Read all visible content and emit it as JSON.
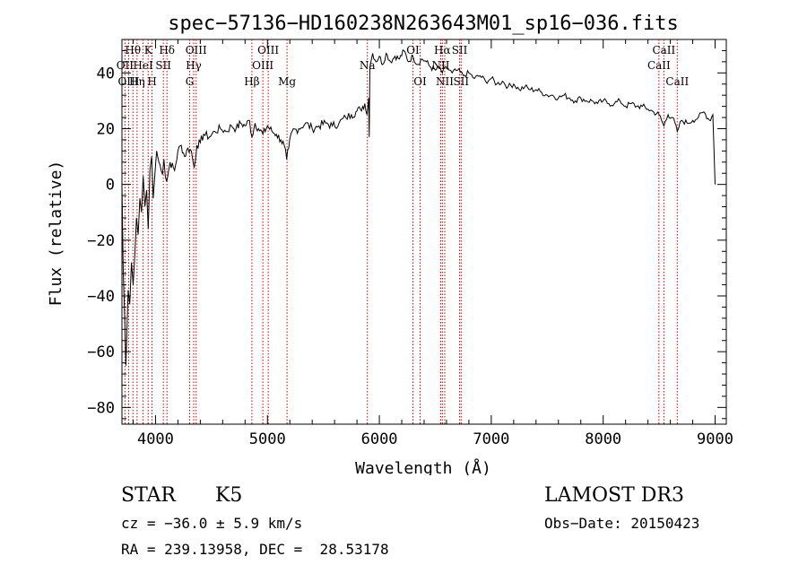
{
  "chart_data": {
    "type": "line",
    "title": "spec−57136−HD160238N263643M01_sp16−036.fits",
    "xlabel": "Wavelength (Å)",
    "ylabel": "Flux (relative)",
    "xlim": [
      3700,
      9100
    ],
    "ylim": [
      -86,
      52
    ],
    "x_ticks": [
      4000,
      5000,
      6000,
      7000,
      8000,
      9000
    ],
    "y_ticks": [
      -80,
      -60,
      -40,
      -20,
      0,
      20,
      40
    ],
    "y_tick_labels": [
      "−80",
      "−60",
      "−40",
      "−20",
      "0",
      "20",
      "40"
    ],
    "grid": false,
    "series": [
      {
        "name": "flux",
        "points": [
          [
            3700,
            0
          ],
          [
            3712,
            -32
          ],
          [
            3725,
            -48
          ],
          [
            3735,
            -65
          ],
          [
            3745,
            -52
          ],
          [
            3755,
            -38
          ],
          [
            3770,
            -43
          ],
          [
            3785,
            -28
          ],
          [
            3800,
            -36
          ],
          [
            3815,
            -25
          ],
          [
            3830,
            -12
          ],
          [
            3845,
            -18
          ],
          [
            3860,
            -5
          ],
          [
            3875,
            -10
          ],
          [
            3890,
            3
          ],
          [
            3905,
            -8
          ],
          [
            3920,
            -2
          ],
          [
            3935,
            -16
          ],
          [
            3950,
            5
          ],
          [
            3965,
            10
          ],
          [
            3980,
            -5
          ],
          [
            3995,
            4
          ],
          [
            4010,
            12
          ],
          [
            4030,
            8
          ],
          [
            4050,
            5
          ],
          [
            4075,
            9
          ],
          [
            4100,
            1
          ],
          [
            4130,
            8
          ],
          [
            4170,
            5
          ],
          [
            4200,
            12
          ],
          [
            4230,
            14
          ],
          [
            4260,
            10
          ],
          [
            4290,
            13
          ],
          [
            4320,
            12
          ],
          [
            4345,
            6
          ],
          [
            4370,
            14
          ],
          [
            4400,
            15
          ],
          [
            4430,
            18
          ],
          [
            4480,
            17
          ],
          [
            4530,
            19
          ],
          [
            4580,
            20
          ],
          [
            4630,
            19
          ],
          [
            4680,
            21
          ],
          [
            4720,
            20
          ],
          [
            4760,
            22
          ],
          [
            4800,
            21
          ],
          [
            4840,
            23
          ],
          [
            4861,
            17
          ],
          [
            4890,
            22
          ],
          [
            4920,
            20
          ],
          [
            4960,
            18
          ],
          [
            5000,
            21
          ],
          [
            5040,
            19
          ],
          [
            5080,
            18
          ],
          [
            5120,
            16
          ],
          [
            5150,
            14
          ],
          [
            5172,
            9
          ],
          [
            5190,
            13
          ],
          [
            5220,
            19
          ],
          [
            5280,
            20
          ],
          [
            5340,
            22
          ],
          [
            5400,
            20
          ],
          [
            5460,
            21
          ],
          [
            5520,
            22
          ],
          [
            5580,
            21
          ],
          [
            5640,
            22
          ],
          [
            5700,
            24
          ],
          [
            5750,
            25
          ],
          [
            5790,
            26
          ],
          [
            5830,
            27
          ],
          [
            5870,
            29
          ],
          [
            5890,
            25
          ],
          [
            5905,
            31
          ],
          [
            5910,
            17
          ],
          [
            5915,
            42
          ],
          [
            5940,
            47
          ],
          [
            5970,
            44
          ],
          [
            6000,
            46
          ],
          [
            6030,
            43
          ],
          [
            6060,
            47
          ],
          [
            6100,
            44
          ],
          [
            6140,
            46
          ],
          [
            6180,
            45
          ],
          [
            6220,
            48
          ],
          [
            6260,
            44
          ],
          [
            6300,
            46
          ],
          [
            6340,
            43
          ],
          [
            6380,
            45
          ],
          [
            6420,
            44
          ],
          [
            6460,
            42
          ],
          [
            6500,
            41
          ],
          [
            6540,
            42
          ],
          [
            6563,
            40
          ],
          [
            6600,
            42
          ],
          [
            6650,
            40
          ],
          [
            6700,
            41
          ],
          [
            6750,
            39
          ],
          [
            6800,
            40
          ],
          [
            6850,
            38
          ],
          [
            6900,
            39
          ],
          [
            6950,
            37
          ],
          [
            7000,
            38
          ],
          [
            7050,
            36
          ],
          [
            7100,
            37
          ],
          [
            7150,
            35
          ],
          [
            7200,
            36
          ],
          [
            7250,
            34
          ],
          [
            7300,
            35
          ],
          [
            7350,
            34
          ],
          [
            7400,
            34
          ],
          [
            7450,
            33
          ],
          [
            7500,
            32
          ],
          [
            7550,
            32
          ],
          [
            7600,
            31
          ],
          [
            7650,
            32
          ],
          [
            7700,
            31
          ],
          [
            7750,
            30
          ],
          [
            7800,
            31
          ],
          [
            7850,
            30
          ],
          [
            7900,
            30
          ],
          [
            7950,
            29
          ],
          [
            8000,
            30
          ],
          [
            8050,
            29
          ],
          [
            8100,
            29
          ],
          [
            8150,
            30
          ],
          [
            8200,
            28
          ],
          [
            8250,
            29
          ],
          [
            8300,
            28
          ],
          [
            8350,
            28
          ],
          [
            8400,
            27
          ],
          [
            8450,
            26
          ],
          [
            8500,
            25
          ],
          [
            8542,
            21
          ],
          [
            8580,
            25
          ],
          [
            8620,
            24
          ],
          [
            8662,
            19
          ],
          [
            8700,
            23
          ],
          [
            8750,
            22
          ],
          [
            8800,
            23
          ],
          [
            8850,
            24
          ],
          [
            8900,
            26
          ],
          [
            8950,
            23
          ],
          [
            8980,
            25
          ],
          [
            9000,
            0
          ]
        ]
      }
    ],
    "lines": [
      {
        "label": "Hθ",
        "x": 3798,
        "row": 0
      },
      {
        "label": "OII",
        "x": 3727,
        "row": 1
      },
      {
        "label": "OIII",
        "x": 3760,
        "row": 2
      },
      {
        "label": "K",
        "x": 3934,
        "row": 0
      },
      {
        "label": "HeI",
        "x": 3889,
        "row": 1
      },
      {
        "label": "Hη",
        "x": 3835,
        "row": 2
      },
      {
        "label": "H",
        "x": 3969,
        "row": 2
      },
      {
        "label": "Hδ",
        "x": 4102,
        "row": 0
      },
      {
        "label": "SII",
        "x": 4070,
        "row": 1
      },
      {
        "label": "OIII",
        "x": 4363,
        "row": 0
      },
      {
        "label": "Hγ",
        "x": 4341,
        "row": 1
      },
      {
        "label": "G",
        "x": 4305,
        "row": 2
      },
      {
        "label": "Hβ",
        "x": 4861,
        "row": 2
      },
      {
        "label": "OIII",
        "x": 5007,
        "row": 0
      },
      {
        "label": "OIII",
        "x": 4959,
        "row": 1
      },
      {
        "label": "Mg",
        "x": 5175,
        "row": 2
      },
      {
        "label": "Na",
        "x": 5893,
        "row": 1
      },
      {
        "label": "OI",
        "x": 6300,
        "row": 0
      },
      {
        "label": "OI",
        "x": 6364,
        "row": 2
      },
      {
        "label": "Hα",
        "x": 6563,
        "row": 0
      },
      {
        "label": "NII",
        "x": 6548,
        "row": 1
      },
      {
        "label": "NII",
        "x": 6584,
        "row": 2
      },
      {
        "label": "SII",
        "x": 6717,
        "row": 0
      },
      {
        "label": "SII",
        "x": 6731,
        "row": 2
      },
      {
        "label": "CaII",
        "x": 8542,
        "row": 0
      },
      {
        "label": "CaII",
        "x": 8498,
        "row": 1
      },
      {
        "label": "CaII",
        "x": 8662,
        "row": 2
      }
    ],
    "colors": {
      "spectrum": "#000000",
      "lines": "#cc0000",
      "axes": "#000000"
    }
  },
  "info": {
    "object_class": "STAR",
    "subclass": "K5",
    "survey": "LAMOST DR3",
    "cz": "cz = −36.0 ± 5.9 km/s",
    "obs_date": "Obs−Date: 20150423",
    "coords": "RA = 239.13958, DEC =  28.53178"
  }
}
